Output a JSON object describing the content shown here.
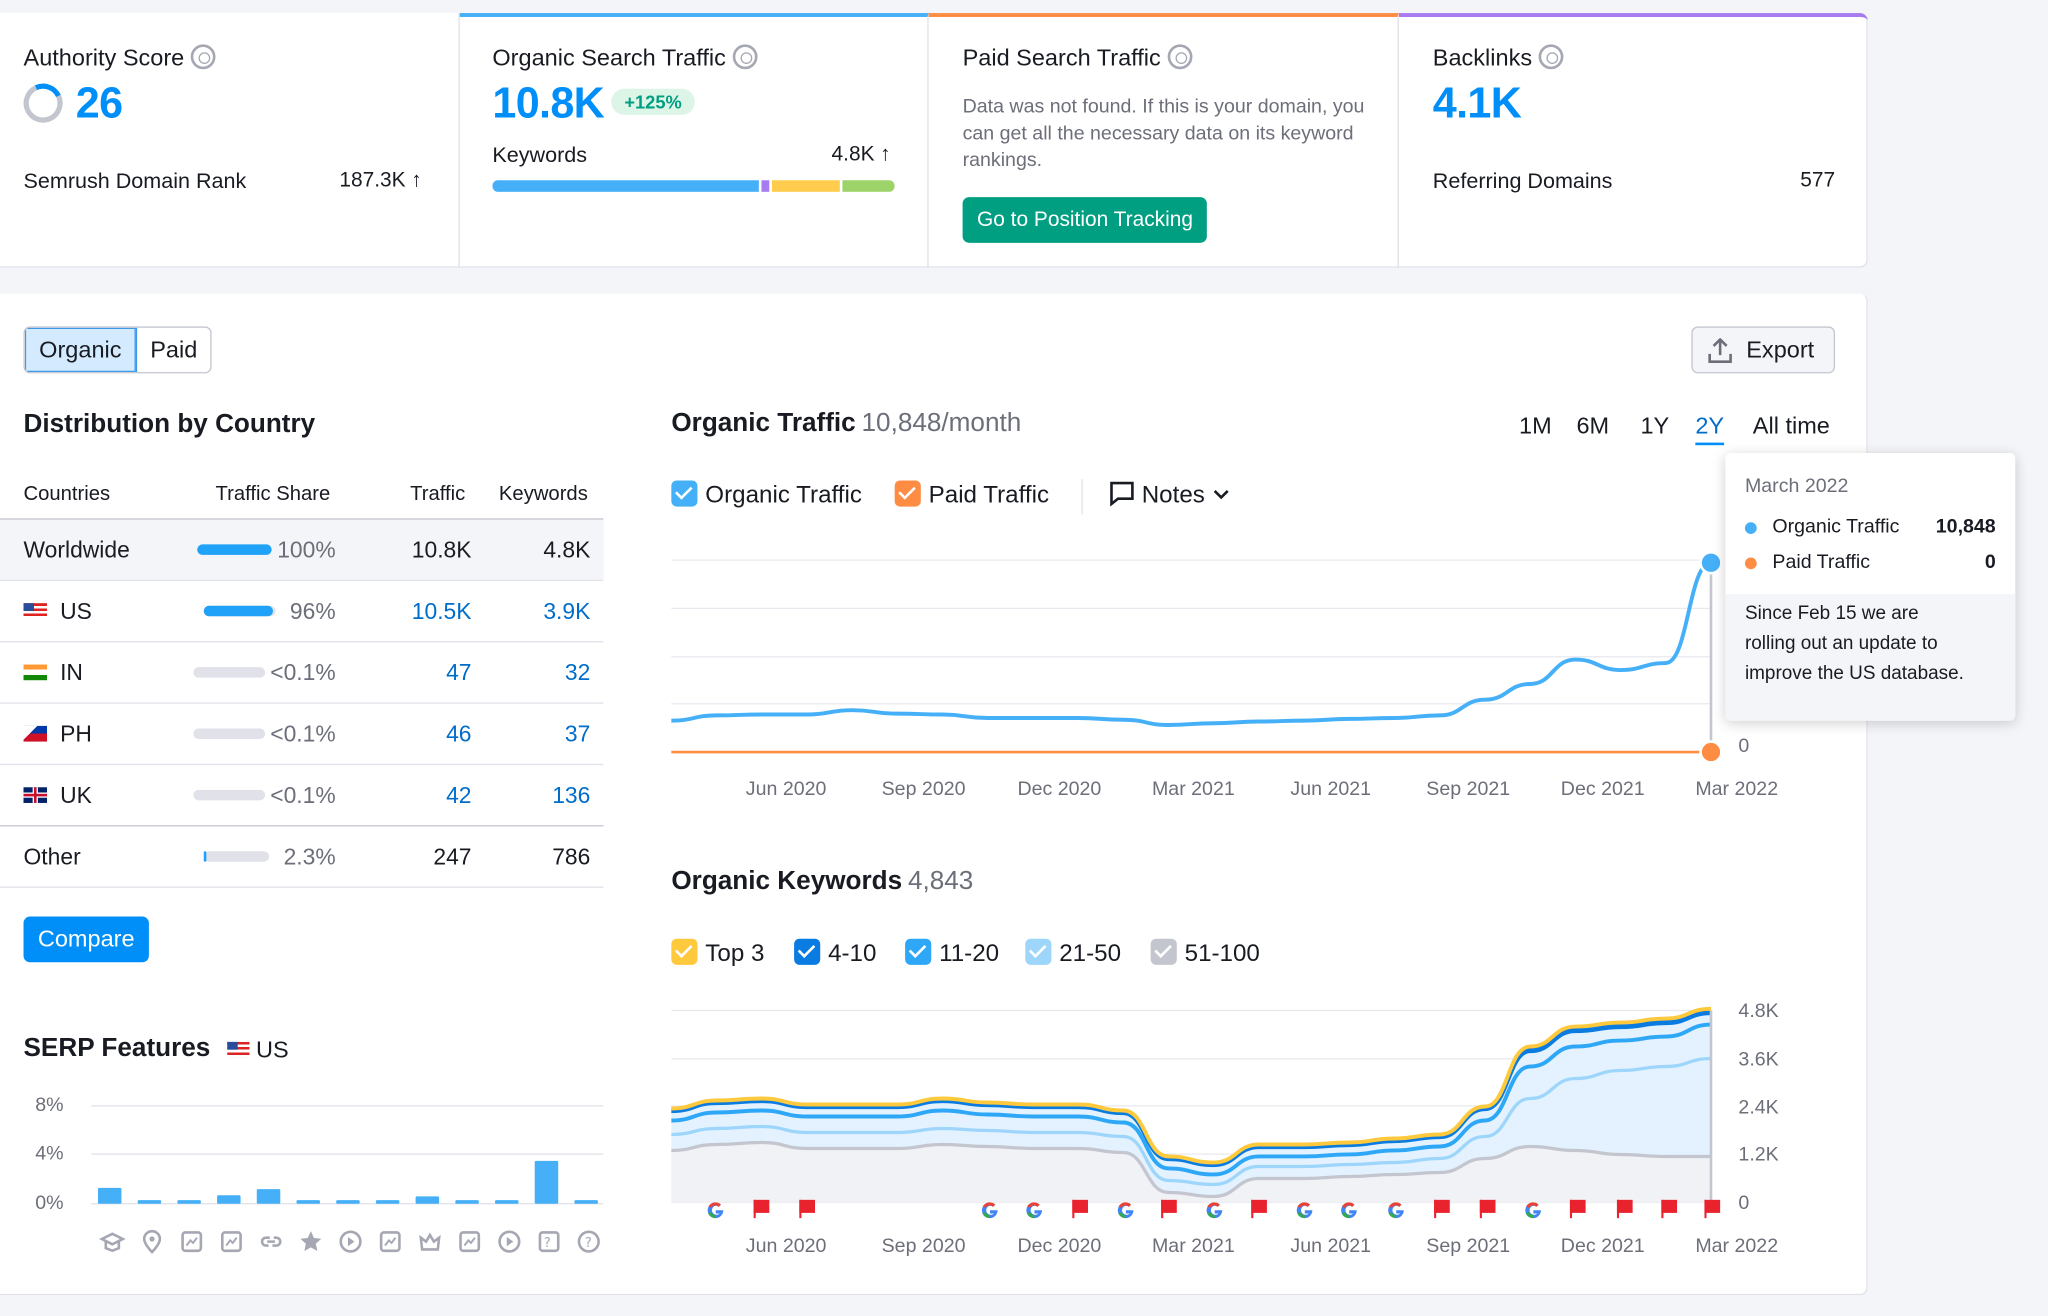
{
  "authority": {
    "title": "Authority Score",
    "value": "26",
    "rank_label": "Semrush Domain Rank",
    "rank_value": "187.3K ↑"
  },
  "organic_card": {
    "title": "Organic Search Traffic",
    "value": "10.8K",
    "badge": "+125%",
    "keywords_label": "Keywords",
    "keywords_value": "4.8K ↑",
    "segments": [
      {
        "share": 0.67,
        "color": "#45b0f8"
      },
      {
        "share": 0.02,
        "color": "#a77cf0"
      },
      {
        "share": 0.17,
        "color": "#ffcc4d"
      },
      {
        "share": 0.13,
        "color": "#9ed36a"
      }
    ]
  },
  "paid_card": {
    "title": "Paid Search Traffic",
    "message": "Data was not found. If this is your domain, you can get all the necessary data on its keyword rankings.",
    "button": "Go to Position Tracking"
  },
  "backlinks_card": {
    "title": "Backlinks",
    "value": "4.1K",
    "ref_label": "Referring Domains",
    "ref_value": "577"
  },
  "toggle": {
    "organic": "Organic",
    "paid": "Paid"
  },
  "export": "Export",
  "distribution": {
    "title": "Distribution by Country",
    "headers": [
      "Countries",
      "Traffic Share",
      "Traffic",
      "Keywords"
    ],
    "rows": [
      {
        "country": "Worldwide",
        "share": "100%",
        "fill": 1.0,
        "traffic": "10.8K",
        "keywords": "4.8K"
      },
      {
        "country": "US",
        "share": "96%",
        "fill": 0.96,
        "traffic": "10.5K",
        "keywords": "3.9K"
      },
      {
        "country": "IN",
        "share": "<0.1%",
        "fill": 0.0,
        "traffic": "47",
        "keywords": "32"
      },
      {
        "country": "PH",
        "share": "<0.1%",
        "fill": 0.0,
        "traffic": "46",
        "keywords": "37"
      },
      {
        "country": "UK",
        "share": "<0.1%",
        "fill": 0.0,
        "traffic": "42",
        "keywords": "136"
      },
      {
        "country": "Other",
        "share": "2.3%",
        "fill": 0.023,
        "traffic": "247",
        "keywords": "786"
      }
    ],
    "compare": "Compare"
  },
  "serp": {
    "title": "SERP Features",
    "country": "US",
    "yticks": [
      "8%",
      "4%",
      "0%"
    ],
    "values": [
      1.3,
      0.3,
      0.3,
      0.7,
      1.2,
      0.3,
      0.3,
      0.3,
      0.6,
      0.3,
      0.3,
      3.5,
      0.3
    ],
    "icons": [
      "graduation-cap-icon",
      "location-pin-icon",
      "news-icon",
      "image-pack-icon",
      "link-icon",
      "star-icon",
      "video-icon",
      "video-carousel-icon",
      "crown-icon",
      "image-icon",
      "play-icon",
      "faq-icon",
      "question-icon"
    ]
  },
  "traffic_chart": {
    "title": "Organic Traffic",
    "subtitle": "10,848/month",
    "ranges": [
      "1M",
      "6M",
      "1Y",
      "2Y",
      "All time"
    ],
    "active_range": "2Y",
    "legend": {
      "organic": "Organic Traffic",
      "paid": "Paid Traffic",
      "notes": "Notes"
    },
    "y_label_zero": "0",
    "x_labels": [
      "Jun 2020",
      "Sep 2020",
      "Dec 2020",
      "Mar 2021",
      "Jun 2021",
      "Sep 2021",
      "Dec 2021",
      "Mar 2022"
    ]
  },
  "tooltip": {
    "date": "March 2022",
    "organic_label": "Organic Traffic",
    "organic_value": "10,848",
    "paid_label": "Paid Traffic",
    "paid_value": "0",
    "note": "Since Feb 15 we are rolling out an update to improve the US database."
  },
  "keywords_chart": {
    "title": "Organic Keywords",
    "subtitle": "4,843",
    "legend": [
      {
        "label": "Top 3",
        "color": "#ffc93d"
      },
      {
        "label": "4-10",
        "color": "#0a7be0"
      },
      {
        "label": "11-20",
        "color": "#2ea7f7"
      },
      {
        "label": "21-50",
        "color": "#9ed6fb"
      },
      {
        "label": "51-100",
        "color": "#c4c6cf"
      }
    ],
    "yticks": [
      "4.8K",
      "3.6K",
      "2.4K",
      "1.2K",
      "0"
    ],
    "x_labels": [
      "Jun 2020",
      "Sep 2020",
      "Dec 2020",
      "Mar 2021",
      "Jun 2021",
      "Sep 2021",
      "Dec 2021",
      "Mar 2022"
    ]
  },
  "chart_data": [
    {
      "type": "line",
      "title": "Organic Traffic",
      "x": [
        "Apr 2020",
        "May 2020",
        "Jun 2020",
        "Jul 2020",
        "Aug 2020",
        "Sep 2020",
        "Oct 2020",
        "Nov 2020",
        "Dec 2020",
        "Jan 2021",
        "Feb 2021",
        "Mar 2021",
        "Apr 2021",
        "May 2021",
        "Jun 2021",
        "Jul 2021",
        "Aug 2021",
        "Sep 2021",
        "Oct 2021",
        "Nov 2021",
        "Dec 2021",
        "Jan 2022",
        "Feb 2022",
        "Mar 2022"
      ],
      "series": [
        {
          "name": "Organic Traffic",
          "color": "#45b0f8",
          "values": [
            1800,
            2100,
            2150,
            2150,
            2400,
            2200,
            2150,
            1950,
            1950,
            1950,
            1850,
            1550,
            1650,
            1750,
            1800,
            1900,
            1950,
            2100,
            3000,
            3900,
            5300,
            4700,
            5100,
            10848
          ]
        },
        {
          "name": "Paid Traffic",
          "color": "#ff8c43",
          "values": [
            0,
            0,
            0,
            0,
            0,
            0,
            0,
            0,
            0,
            0,
            0,
            0,
            0,
            0,
            0,
            0,
            0,
            0,
            0,
            0,
            0,
            0,
            0,
            0
          ]
        }
      ],
      "ylim": [
        0,
        11000
      ]
    },
    {
      "type": "area",
      "title": "Organic Keywords",
      "x": [
        "Apr 2020",
        "May 2020",
        "Jun 2020",
        "Jul 2020",
        "Aug 2020",
        "Sep 2020",
        "Oct 2020",
        "Nov 2020",
        "Dec 2020",
        "Jan 2021",
        "Feb 2021",
        "Mar 2021",
        "Apr 2021",
        "May 2021",
        "Jun 2021",
        "Jul 2021",
        "Aug 2021",
        "Sep 2021",
        "Oct 2021",
        "Nov 2021",
        "Dec 2021",
        "Jan 2022",
        "Feb 2022",
        "Mar 2022"
      ],
      "series": [
        {
          "name": "Top 3",
          "values": [
            2350,
            2550,
            2600,
            2450,
            2450,
            2450,
            2600,
            2500,
            2450,
            2450,
            2300,
            1150,
            1000,
            1450,
            1450,
            1500,
            1600,
            1700,
            2400,
            3900,
            4400,
            4500,
            4600,
            4843
          ]
        },
        {
          "name": "4-10",
          "values": [
            2300,
            2500,
            2550,
            2400,
            2400,
            2400,
            2550,
            2450,
            2400,
            2400,
            2250,
            1100,
            950,
            1400,
            1400,
            1450,
            1550,
            1650,
            2350,
            3800,
            4300,
            4400,
            4500,
            4750
          ]
        },
        {
          "name": "11-20",
          "values": [
            2050,
            2250,
            2300,
            2150,
            2150,
            2150,
            2300,
            2200,
            2150,
            2150,
            2000,
            850,
            700,
            1150,
            1150,
            1200,
            1300,
            1400,
            2050,
            3400,
            3900,
            4050,
            4150,
            4450
          ]
        },
        {
          "name": "21-50",
          "values": [
            1700,
            1850,
            1900,
            1750,
            1750,
            1750,
            1850,
            1800,
            1750,
            1750,
            1650,
            550,
            450,
            900,
            900,
            950,
            1000,
            1100,
            1650,
            2600,
            3100,
            3300,
            3400,
            3600
          ]
        },
        {
          "name": "51-100",
          "values": [
            1300,
            1450,
            1500,
            1350,
            1350,
            1350,
            1450,
            1400,
            1350,
            1350,
            1250,
            250,
            150,
            600,
            600,
            650,
            700,
            750,
            1100,
            1400,
            1300,
            1200,
            1150,
            1150
          ]
        }
      ],
      "ylim": [
        0,
        4800
      ]
    },
    {
      "type": "bar",
      "title": "SERP Features",
      "values": [
        1.3,
        0.3,
        0.3,
        0.7,
        1.2,
        0.3,
        0.3,
        0.3,
        0.6,
        0.3,
        0.3,
        3.5,
        0.3
      ],
      "ylim": [
        0,
        8
      ]
    }
  ]
}
